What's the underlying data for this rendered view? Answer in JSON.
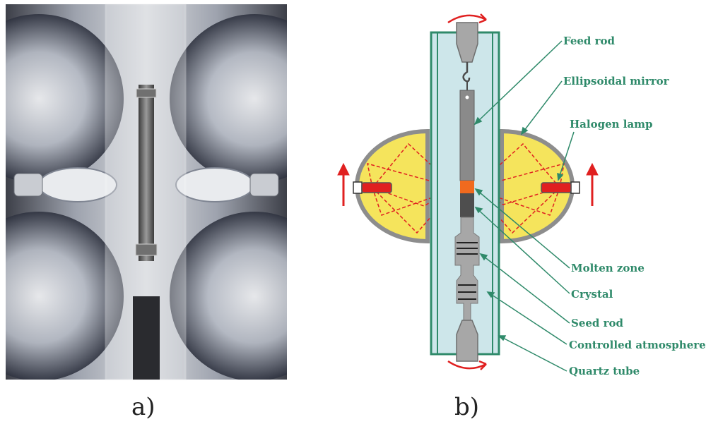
{
  "panels": [
    {
      "caption": "a)"
    },
    {
      "caption": "b)"
    }
  ],
  "labels": {
    "feed_rod": "Feed rod",
    "ellipsoidal_mirror": "Ellipsoidal mirror",
    "halogen_lamp": "Halogen lamp",
    "molten_zone": "Molten zone",
    "crystal": "Crystal",
    "seed_rod": "Seed rod",
    "controlled_atmosphere": "Controlled atmosphere",
    "quartz_tube": "Quartz tube"
  },
  "colors": {
    "label": "#2f8a6a",
    "leader": "#2f8a6a",
    "mirror_fill": "#f5e45c",
    "mirror_shell": "#8d8d8d",
    "tube": "#cde6ea",
    "tube_edge": "#2f8a6a",
    "molten_zone": "#f06a1e",
    "light_rays": "#e02020",
    "arrows": "#e02020",
    "rod": "#8a8a8a"
  }
}
